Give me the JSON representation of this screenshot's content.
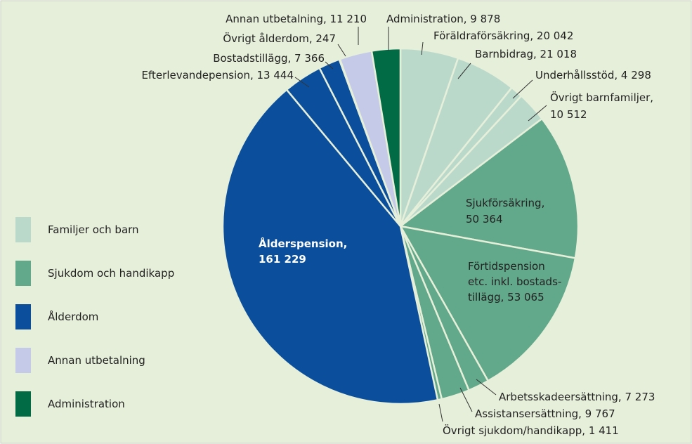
{
  "chart_data": {
    "type": "pie",
    "categories": [
      "Föräldraförsäkring, 20 042",
      "Barnbidrag, 21 018",
      "Underhållsstöd, 4 298",
      "Övrigt barnfamiljer,\n10 512",
      "Sjukförsäkring,\n50 364",
      "Förtidspension\netc. inkl. bostads-\ntillägg,  53 065",
      "Arbetsskadeersättning, 7 273",
      "Assistansersättning, 9 767",
      "Övrigt sjukdom/handikapp, 1 411",
      "Ålderspension,\n161 229",
      "Efterlevandepension, 13 444",
      "Bostadstillägg, 7 366",
      "Övrigt ålderdom, 247",
      "Annan utbetalning, 11 210",
      "Administration, 9 878"
    ],
    "values": [
      20042,
      21018,
      4298,
      10512,
      50364,
      53065,
      7273,
      9767,
      1411,
      161229,
      13444,
      7366,
      247,
      11210,
      9878
    ],
    "colors": [
      "#bad9cb",
      "#bad9cb",
      "#bad9cb",
      "#bad9cb",
      "#62a88a",
      "#62a88a",
      "#62a88a",
      "#62a88a",
      "#62a88a",
      "#0b4f9c",
      "#0b4f9c",
      "#0b4f9c",
      "#0b4f9c",
      "#c5cae8",
      "#006b45"
    ],
    "legend": [
      {
        "name": "Familjer och barn",
        "color": "#bad9cb"
      },
      {
        "name": "Sjukdom och handikapp",
        "color": "#62a88a"
      },
      {
        "name": "Ålderdom",
        "color": "#0b4f9c"
      },
      {
        "name": "Annan utbetalning",
        "color": "#c5cae8"
      },
      {
        "name": "Administration",
        "color": "#006b45"
      }
    ]
  }
}
